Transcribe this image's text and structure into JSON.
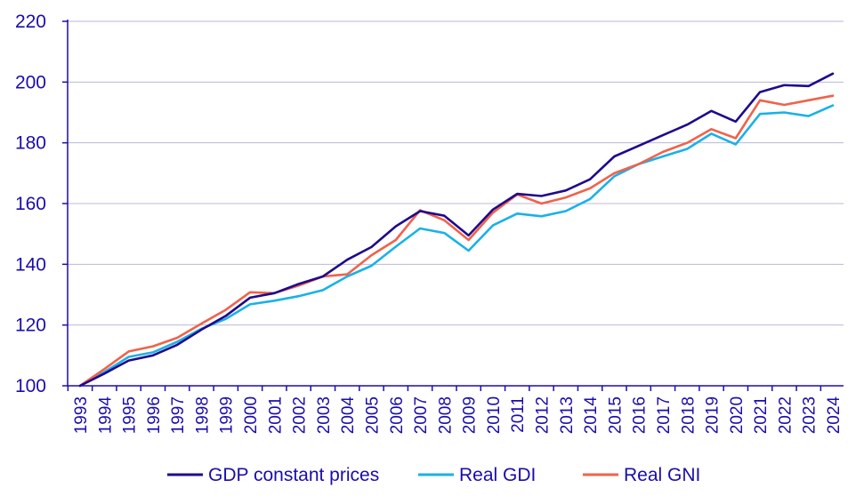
{
  "chart_data": {
    "type": "line",
    "title": "",
    "xlabel": "",
    "ylabel": "",
    "ylim": [
      100,
      220
    ],
    "yticks": [
      100,
      120,
      140,
      160,
      180,
      200,
      220
    ],
    "grid": "horizontal",
    "legend_position": "bottom",
    "x": [
      "1993",
      "1994",
      "1995",
      "1996",
      "1997",
      "1998",
      "1999",
      "2000",
      "2001",
      "2002",
      "2003",
      "2004",
      "2005",
      "2006",
      "2007",
      "2008",
      "2009",
      "2010",
      "2011",
      "2012",
      "2013",
      "2014",
      "2015",
      "2016",
      "2017",
      "2018",
      "2019",
      "2020",
      "2021",
      "2022",
      "2023",
      "2024"
    ],
    "series": [
      {
        "name": "GDP constant prices",
        "color": "#1f0a8c",
        "values": [
          100,
          104.0,
          108.3,
          110.0,
          113.5,
          118.5,
          123.0,
          129.0,
          130.5,
          133.5,
          136.0,
          141.5,
          145.7,
          152.5,
          157.5,
          156.0,
          149.5,
          158.0,
          163.2,
          162.5,
          164.3,
          168.0,
          175.5,
          179.0,
          182.5,
          186.0,
          190.5,
          187.0,
          196.7,
          199.0,
          198.7,
          202.8
        ]
      },
      {
        "name": "Real GDI",
        "color": "#1ab1e8",
        "values": [
          100,
          104.5,
          109.5,
          111.0,
          114.5,
          118.8,
          122.0,
          126.8,
          128.0,
          129.5,
          131.5,
          136.0,
          139.5,
          145.8,
          151.8,
          150.3,
          144.5,
          152.8,
          156.7,
          155.8,
          157.5,
          161.5,
          169.0,
          173.0,
          175.5,
          178.0,
          183.0,
          179.5,
          189.5,
          190.0,
          188.8,
          192.3
        ]
      },
      {
        "name": "Real GNI",
        "color": "#f0624a",
        "values": [
          100,
          105.5,
          111.3,
          113.0,
          115.8,
          120.5,
          125.0,
          130.8,
          130.5,
          133.0,
          136.0,
          136.7,
          143.0,
          148.0,
          157.8,
          154.5,
          148.0,
          157.0,
          163.0,
          160.0,
          162.0,
          165.0,
          170.0,
          173.0,
          177.0,
          180.0,
          184.5,
          181.5,
          194.0,
          192.5,
          194.0,
          195.5
        ]
      }
    ]
  }
}
